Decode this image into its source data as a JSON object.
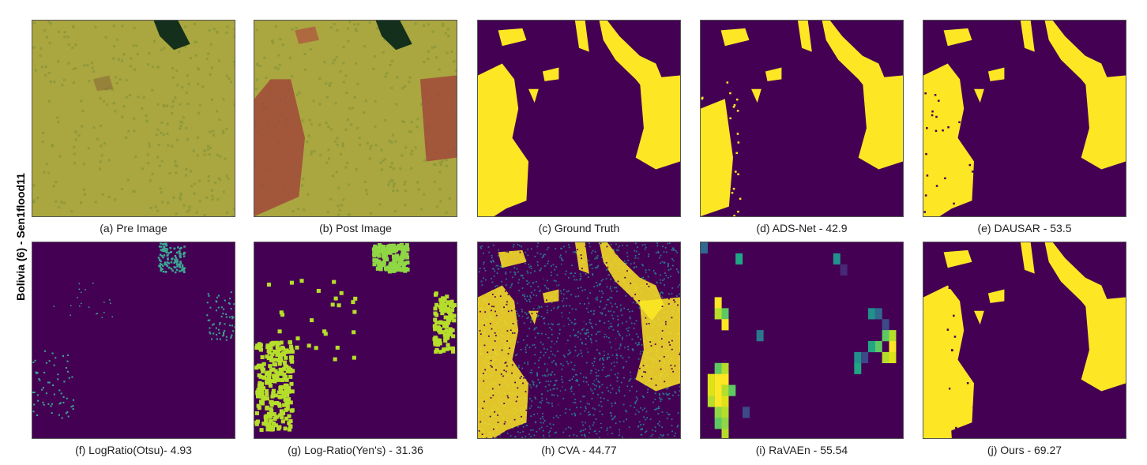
{
  "row_label": "Bolivia (6) - Sen1flood11",
  "panels": [
    {
      "caption": "(a) Pre Image"
    },
    {
      "caption": "(b) Post Image"
    },
    {
      "caption": "(c) Ground Truth"
    },
    {
      "caption": "(d) ADS-Net - 42.9"
    },
    {
      "caption": "(e) DAUSAR - 53.5"
    },
    {
      "caption": "(f) LogRatio(Otsu)- 4.93"
    },
    {
      "caption": "(g) Log-Ratio(Yen's) - 31.36"
    },
    {
      "caption": "(h) CVA - 44.77"
    },
    {
      "caption": "(i) RaVAEn - 55.54"
    },
    {
      "caption": "(j) Ours - 69.27"
    }
  ]
}
